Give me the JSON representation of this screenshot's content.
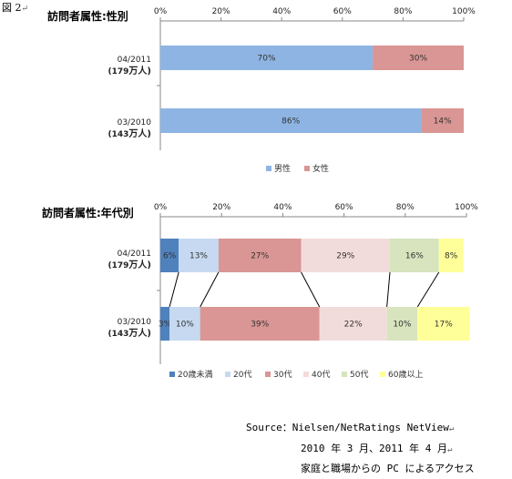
{
  "figure_label": "図 2",
  "chart_data": [
    {
      "type": "bar",
      "stacked": true,
      "orientation": "horizontal",
      "percent": true,
      "title": "訪問者属性:性別",
      "categories": [
        {
          "period": "04/2011",
          "visitors": "179",
          "unit": "万人"
        },
        {
          "period": "03/2010",
          "visitors": "143",
          "unit": "万人"
        }
      ],
      "series": [
        {
          "name": "男性",
          "values": [
            70,
            86
          ],
          "labels": [
            "70%",
            "86%"
          ],
          "color": "#8EB4E3"
        },
        {
          "name": "女性",
          "values": [
            30,
            14
          ],
          "labels": [
            "30%",
            "14%"
          ],
          "color": "#D99694"
        }
      ],
      "xticks": [
        "0%",
        "20%",
        "40%",
        "60%",
        "80%",
        "100%"
      ],
      "xlim": [
        0,
        100
      ],
      "axis_position": "top",
      "legend": "bottom",
      "grid": false
    },
    {
      "type": "bar",
      "stacked": true,
      "orientation": "horizontal",
      "percent": true,
      "title": "訪問者属性:年代別",
      "categories": [
        {
          "period": "04/2011",
          "visitors": "179",
          "unit": "万人"
        },
        {
          "period": "03/2010",
          "visitors": "143",
          "unit": "万人"
        }
      ],
      "series": [
        {
          "name": "20歳未満",
          "values": [
            6,
            3
          ],
          "labels": [
            "6%",
            "3%"
          ],
          "color": "#4F81BD"
        },
        {
          "name": "20代",
          "values": [
            13,
            10
          ],
          "labels": [
            "13%",
            "10%"
          ],
          "color": "#C6D9F1"
        },
        {
          "name": "30代",
          "values": [
            27,
            39
          ],
          "labels": [
            "27%",
            "39%"
          ],
          "color": "#D99694"
        },
        {
          "name": "40代",
          "values": [
            29,
            22
          ],
          "labels": [
            "29%",
            "22%"
          ],
          "color": "#F2DCDB"
        },
        {
          "name": "50代",
          "values": [
            16,
            10
          ],
          "labels": [
            "16%",
            "10%"
          ],
          "color": "#D7E4BD"
        },
        {
          "name": "60歳以上",
          "values": [
            8,
            17
          ],
          "labels": [
            "8%",
            "17%"
          ],
          "color": "#FFFF99"
        }
      ],
      "xticks": [
        "0%",
        "20%",
        "40%",
        "60%",
        "80%",
        "100%"
      ],
      "xlim": [
        0,
        100
      ],
      "axis_position": "top",
      "legend": "bottom",
      "grid": false,
      "connector_lines": true
    }
  ],
  "source": {
    "line1": "Source：Nielsen/NetRatings NetView",
    "line2": "2010 年 3 月、2011 年 4 月",
    "line3": "家庭と職場からの PC によるアクセス"
  }
}
